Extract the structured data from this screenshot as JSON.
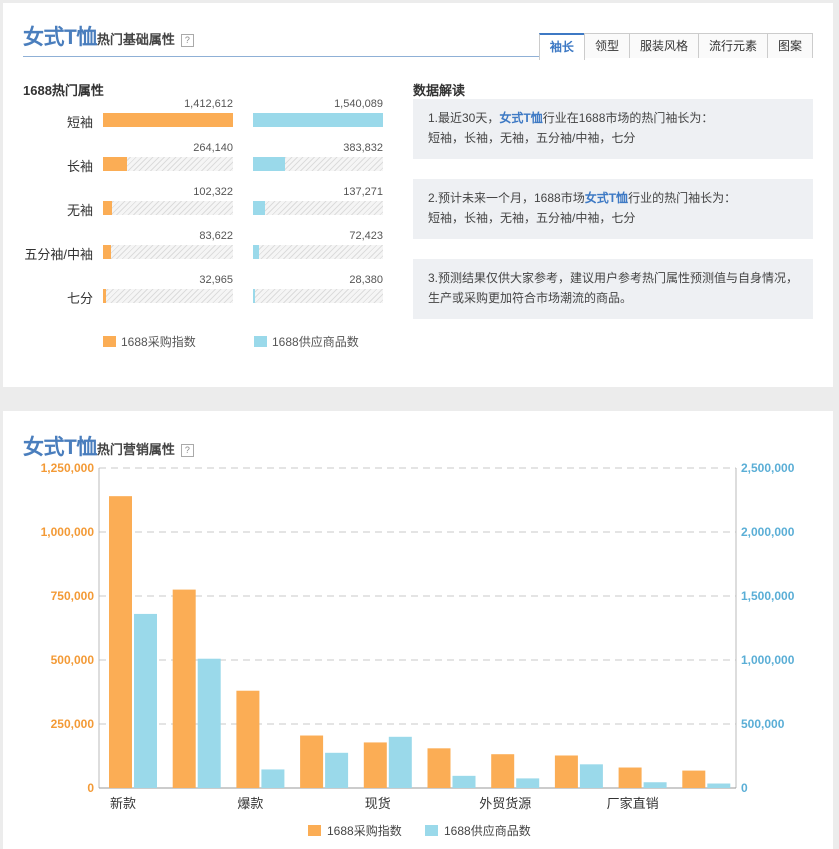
{
  "colors": {
    "orange": "#fbad55",
    "blue": "#9ad9ea",
    "accent": "#3d79c4"
  },
  "basic_panel": {
    "title_main": "女式T恤",
    "title_sub": "热门基础属性",
    "help": "?",
    "tabs": [
      "袖长",
      "领型",
      "服装风格",
      "流行元素",
      "图案"
    ],
    "active_tab": "袖长",
    "section_title": "1688热门属性",
    "rows": [
      {
        "label": "短袖",
        "purchase": 1412612,
        "purchase_text": "1,412,612",
        "supply": 1540089,
        "supply_text": "1,540,089"
      },
      {
        "label": "长袖",
        "purchase": 264140,
        "purchase_text": "264,140",
        "supply": 383832,
        "supply_text": "383,832"
      },
      {
        "label": "无袖",
        "purchase": 102322,
        "purchase_text": "102,322",
        "supply": 137271,
        "supply_text": "137,271"
      },
      {
        "label": "五分袖/中袖",
        "purchase": 83622,
        "purchase_text": "83,622",
        "supply": 72423,
        "supply_text": "72,423"
      },
      {
        "label": "七分",
        "purchase": 32965,
        "purchase_text": "32,965",
        "supply": 28380,
        "supply_text": "28,380"
      }
    ],
    "legend_purchase": "1688采购指数",
    "legend_supply": "1688供应商品数",
    "interp_title": "数据解读",
    "interp": [
      {
        "a": "1.最近30天，",
        "hl": "女式T恤",
        "b": "行业在1688市场的热门袖长为：",
        "c": "短袖，长袖，无袖，五分袖/中袖，七分"
      },
      {
        "a": "2.预计未来一个月，1688市场",
        "hl": "女式T恤",
        "b": "行业的热门袖长为：",
        "c": "短袖，长袖，无袖，五分袖/中袖，七分"
      },
      {
        "a": "3.预测结果仅供大家参考，建议用户参考热门属性预测值与自身情况，生产或采购更加符合市场潮流的商品。",
        "hl": "",
        "b": "",
        "c": ""
      }
    ]
  },
  "market_panel": {
    "title_main": "女式T恤",
    "title_sub": "热门营销属性",
    "help": "?"
  },
  "chart_data": {
    "type": "bar",
    "categories": [
      "新款",
      "",
      "爆款",
      "",
      "现货",
      "",
      "外贸货源",
      "",
      "厂家直销",
      ""
    ],
    "series": [
      {
        "name": "1688采购指数",
        "axis": "left",
        "values": [
          1140000,
          775000,
          380000,
          205000,
          178000,
          155000,
          132000,
          127000,
          80000,
          68000
        ]
      },
      {
        "name": "1688供应商品数",
        "axis": "right",
        "values": [
          1360000,
          1010000,
          145000,
          275000,
          400000,
          95000,
          75000,
          185000,
          45000,
          35000
        ]
      }
    ],
    "y_left": {
      "range": [
        0,
        1250000
      ],
      "ticks": [
        "0",
        "250,000",
        "500,000",
        "750,000",
        "1,000,000",
        "1,250,000"
      ]
    },
    "y_right": {
      "range": [
        0,
        2500000
      ],
      "ticks": [
        "0",
        "500,000",
        "1,000,000",
        "1,500,000",
        "2,000,000",
        "2,500,000"
      ]
    },
    "grid": true,
    "legend_position": "bottom"
  }
}
